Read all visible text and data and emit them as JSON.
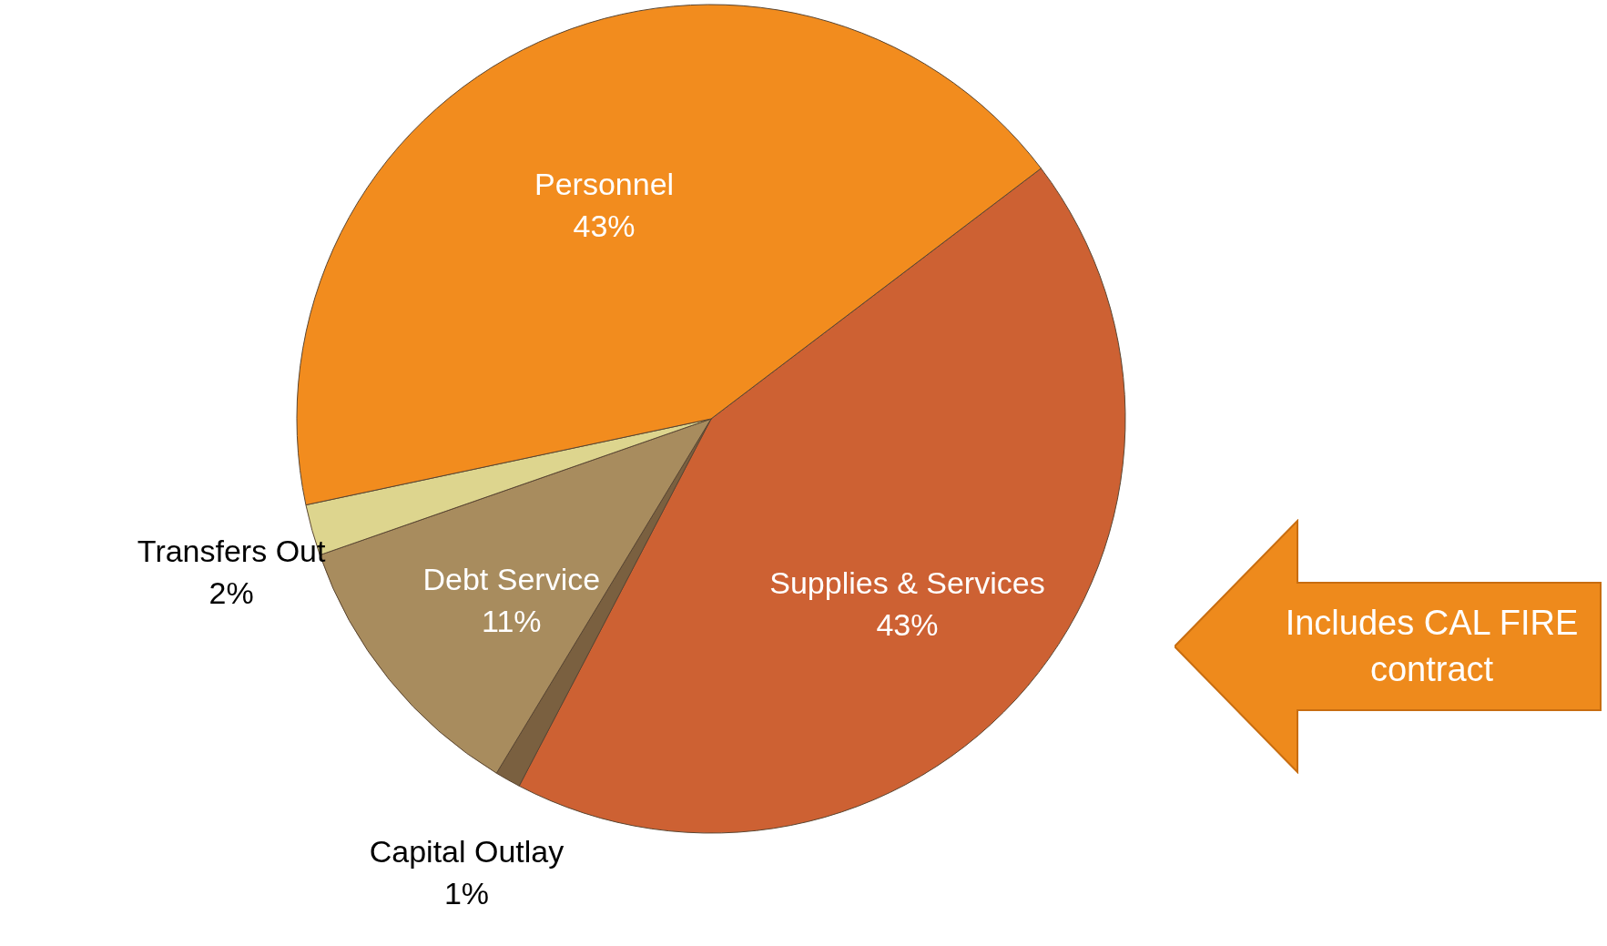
{
  "chart_data": {
    "type": "pie",
    "categories": [
      "Supplies & Services",
      "Capital Outlay",
      "Debt Service",
      "Transfers Out",
      "Personnel"
    ],
    "values": [
      43,
      1,
      11,
      2,
      43
    ],
    "colors": [
      "#cd6133",
      "#7a6040",
      "#a88c5e",
      "#ddd58e",
      "#f28c1e"
    ],
    "value_labels": [
      "43%",
      "1%",
      "11%",
      "2%",
      "43%"
    ],
    "annotations": [
      "Includes CAL FIRE contract"
    ]
  }
}
